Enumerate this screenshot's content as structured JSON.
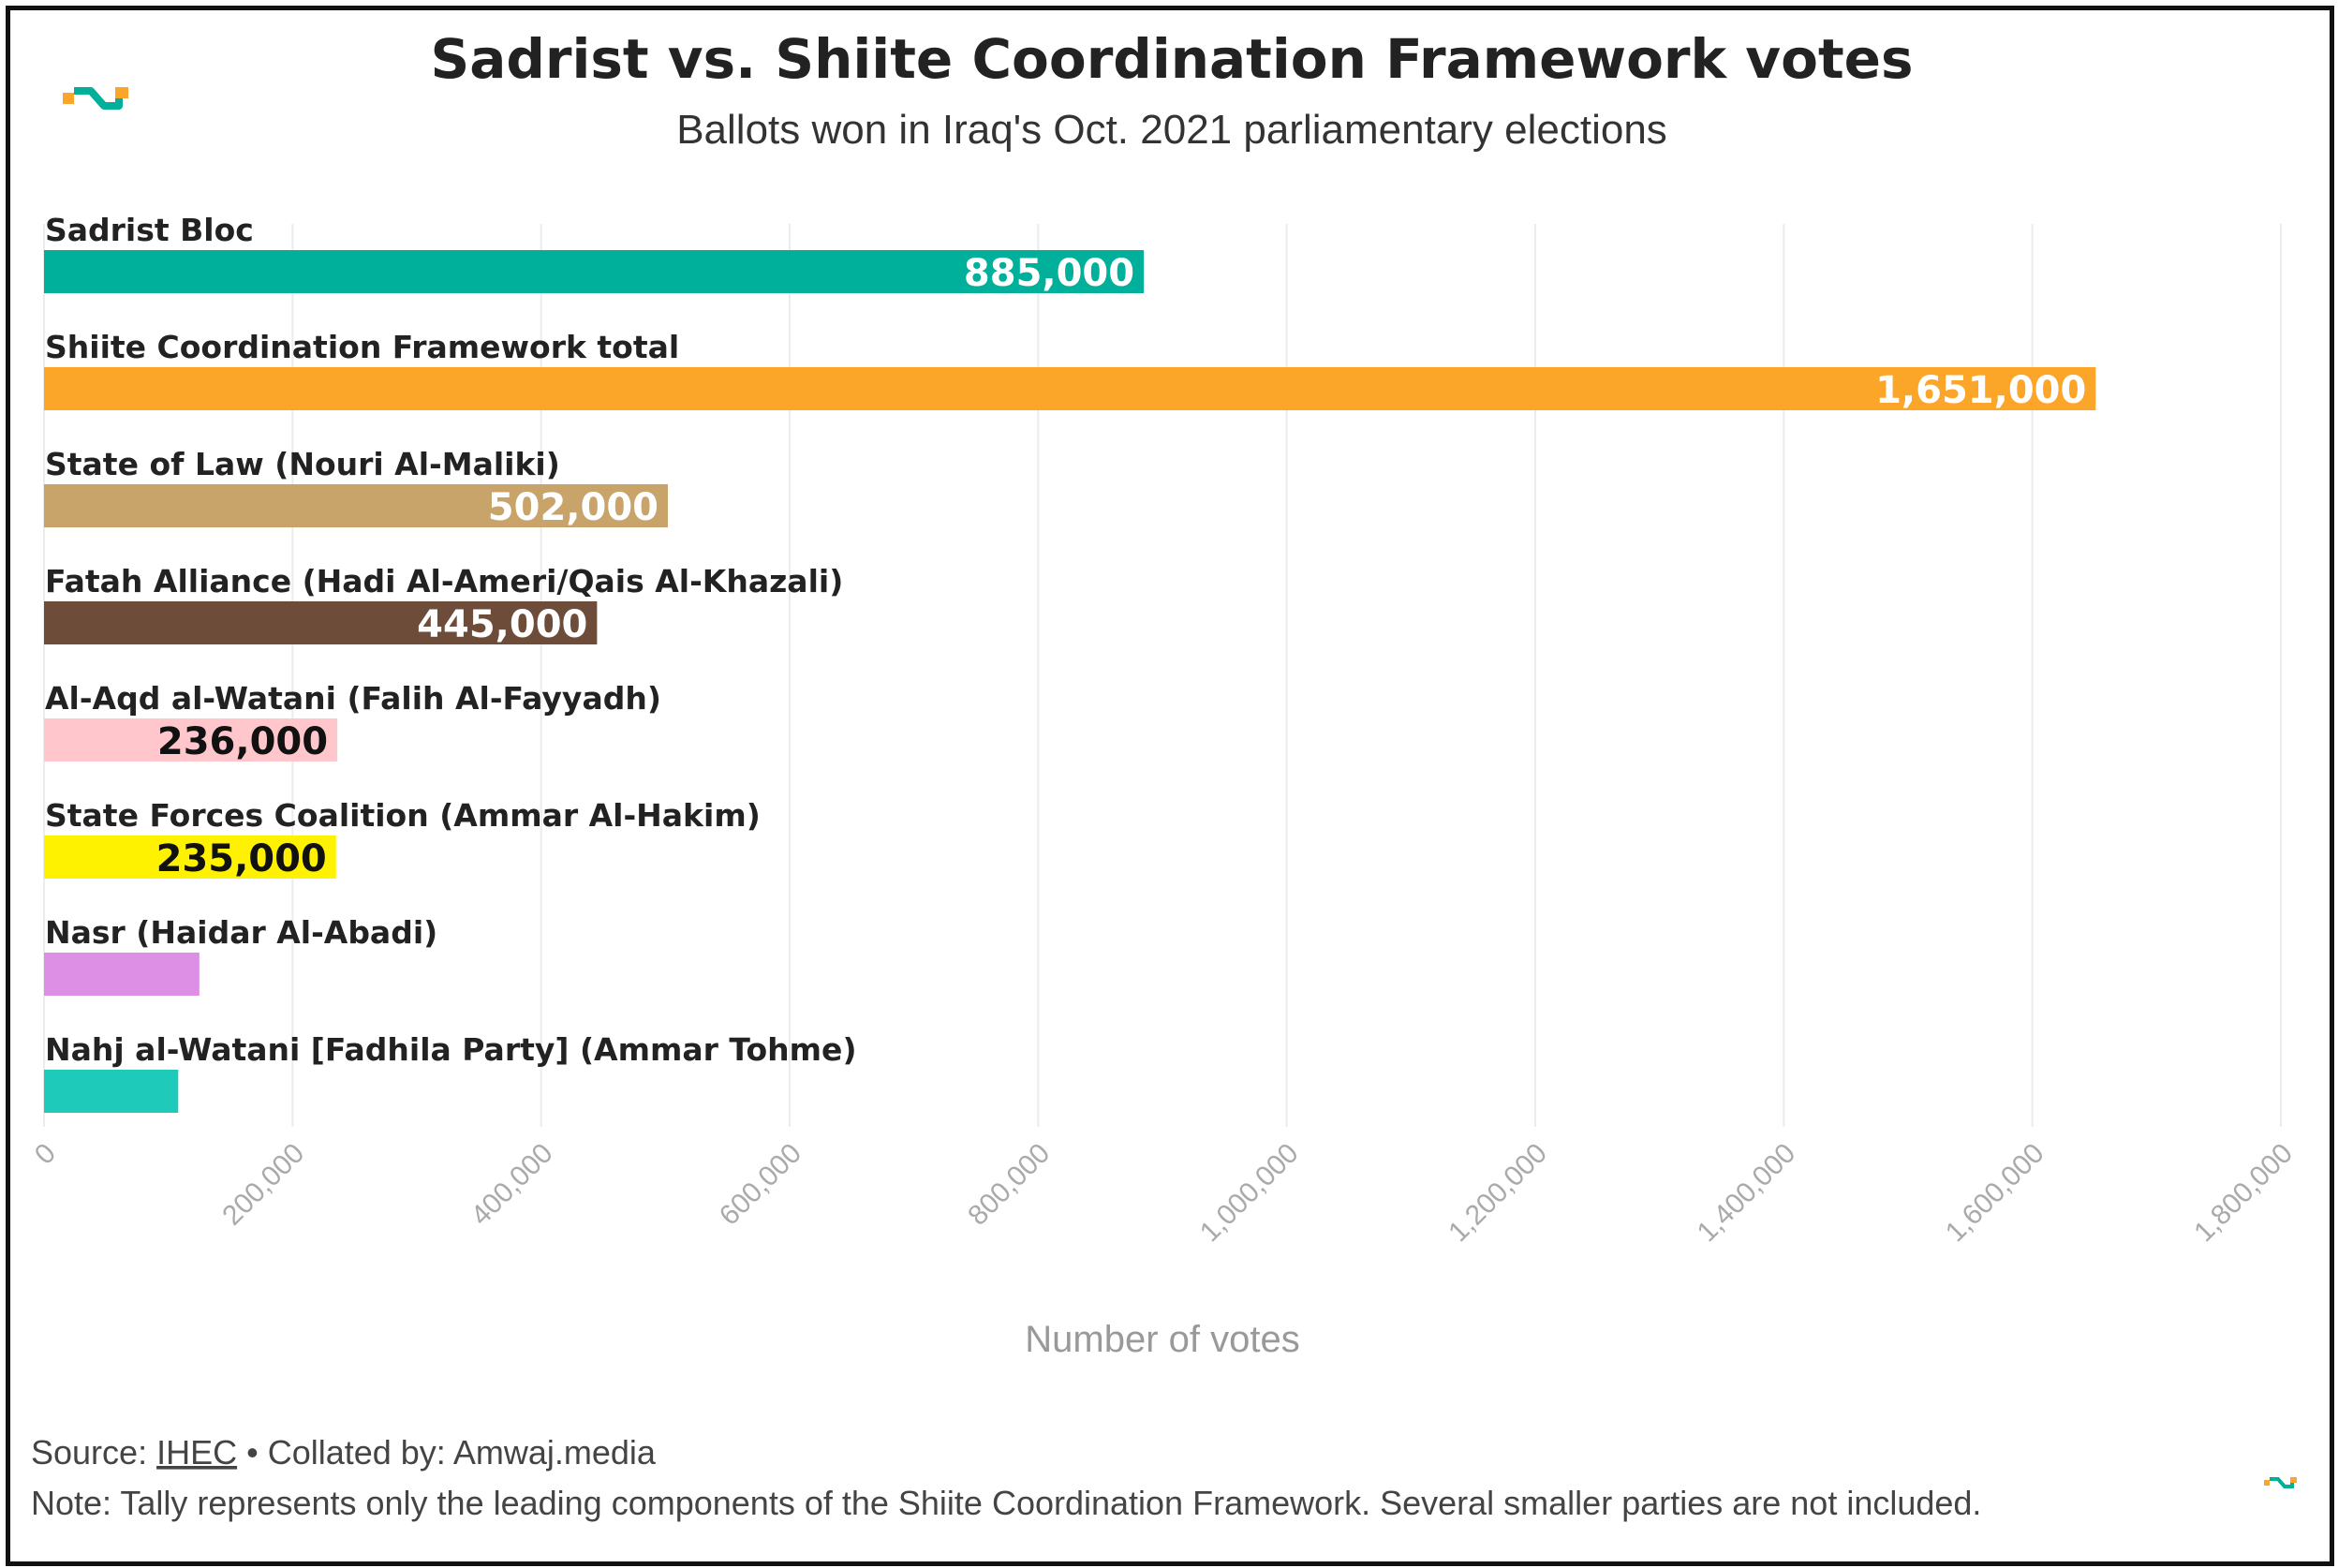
{
  "chart_data": {
    "type": "bar",
    "orientation": "horizontal",
    "title": "Sadrist vs. Shiite Coordination Framework votes",
    "subtitle": "Ballots won in Iraq's Oct. 2021 parliamentary elections",
    "xlabel": "Number of votes",
    "xlim": [
      0,
      1800000
    ],
    "x_ticks": [
      "0",
      "200,000",
      "400,000",
      "600,000",
      "800,000",
      "1,000,000",
      "1,200,000",
      "1,400,000",
      "1,600,000",
      "1,800,000"
    ],
    "grid": true,
    "categories": [
      "Sadrist Bloc",
      "Shiite Coordination Framework total",
      "State of Law (Nouri Al-Maliki)",
      "Fatah Alliance (Hadi Al-Ameri/Qais Al-Khazali)",
      "Al-Aqd al-Watani (Falih Al-Fayyadh)",
      "State Forces Coalition (Ammar Al-Hakim)",
      "Nasr (Haidar Al-Abadi)",
      "Nahj al-Watani [Fadhila Party] (Ammar Tohme)"
    ],
    "values": [
      885000,
      1651000,
      502000,
      445000,
      236000,
      235000,
      125000,
      108000
    ],
    "value_labels": [
      "885,000",
      "1,651,000",
      "502,000",
      "445,000",
      "236,000",
      "235,000",
      "",
      ""
    ],
    "colors": [
      "#00b09b",
      "#fba529",
      "#c8a46a",
      "#6e4c3a",
      "#ffc7cc",
      "#fff200",
      "#dd8fe6",
      "#1ecbbb"
    ],
    "label_colors": [
      "#ffffff",
      "#ffffff",
      "#ffffff",
      "#ffffff",
      "#111111",
      "#111111",
      "#111111",
      "#111111"
    ]
  },
  "footer": {
    "source_prefix": "Source: ",
    "source_link": "IHEC",
    "source_suffix": " • Collated by: Amwaj.media",
    "note": "Note: Tally represents only the leading components of the Shiite Coordination Framework. Several smaller parties are not included."
  },
  "logo": {
    "icon": "amwaj-logo-icon",
    "colors": [
      "#fba529",
      "#00b09b"
    ]
  }
}
